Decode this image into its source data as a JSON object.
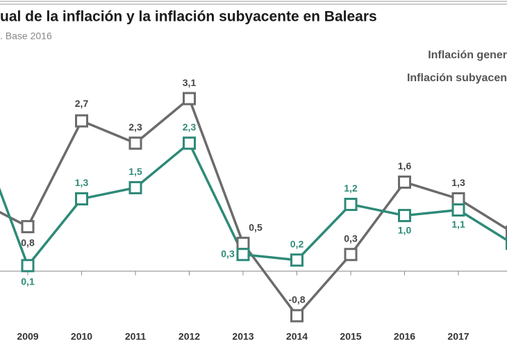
{
  "chart_data": {
    "type": "line",
    "title": "ual de la inflación y la inflación subyacente en Balears",
    "subtitle": ". Base 2016",
    "categories": [
      null,
      "2009",
      "2010",
      "2011",
      "2012",
      "2013",
      "2014",
      "2015",
      "2016",
      "2017",
      null
    ],
    "ylim": [
      -1,
      3.5
    ],
    "series": [
      {
        "name": "Inflación gener",
        "color": "#6b6b6b",
        "values": [
          1.3,
          0.8,
          2.7,
          2.3,
          3.1,
          0.5,
          -0.8,
          0.3,
          1.6,
          1.3,
          0.7
        ],
        "value_labels": [
          null,
          "0,8",
          "2,7",
          "2,3",
          "3,1",
          "0,5",
          "-0,8",
          "0,3",
          "1,6",
          "1,3",
          null
        ]
      },
      {
        "name": "Inflación subyacen",
        "color": "#2e8a78",
        "values": [
          2.7,
          0.1,
          1.3,
          1.5,
          2.3,
          0.3,
          0.2,
          1.2,
          1.0,
          1.1,
          0.5
        ],
        "value_labels": [
          null,
          "0,1",
          "1,3",
          "1,5",
          "2,3",
          "0,3",
          "0,2",
          "1,2",
          "1,0",
          "1,1",
          null
        ]
      }
    ]
  }
}
